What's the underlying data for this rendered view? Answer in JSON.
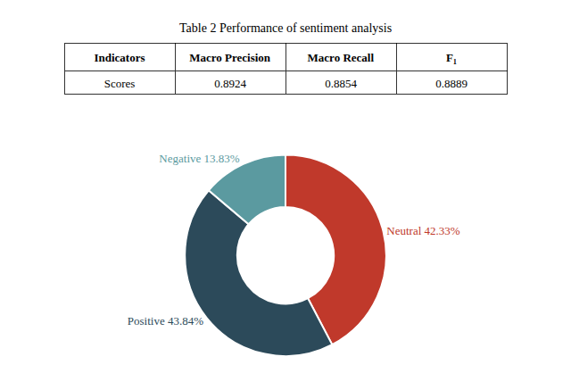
{
  "chart_data": [
    {
      "type": "table",
      "title": "Table 2 Performance of sentiment analysis",
      "headers": [
        "Indicators",
        "Macro Precision",
        "Macro Recall",
        "F₁"
      ],
      "rows": [
        [
          "Scores",
          "0.8924",
          "0.8854",
          "0.8889"
        ]
      ]
    },
    {
      "type": "pie",
      "categories": [
        "Neutral",
        "Positive",
        "Negative"
      ],
      "values": [
        42.33,
        43.84,
        13.83
      ],
      "value_labels": [
        "Neutral 42.33%",
        "Positive 43.84%",
        "Negative 13.83%"
      ],
      "colors": [
        "#c0392b",
        "#2c4a5a",
        "#5b9aa0"
      ],
      "legend": false
    }
  ]
}
